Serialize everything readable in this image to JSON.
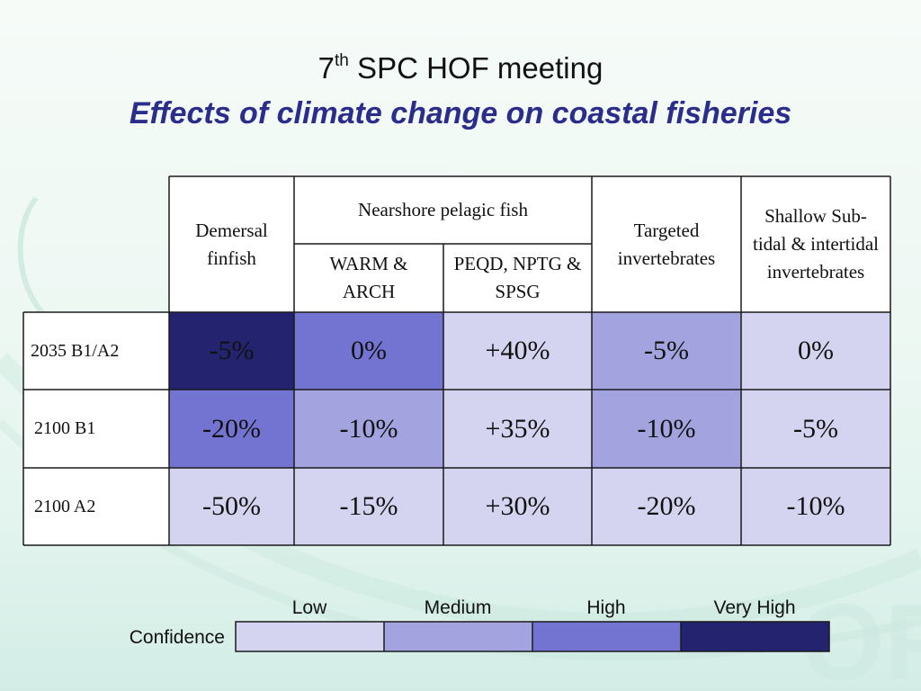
{
  "title": {
    "line1_prefix": "7",
    "line1_sup": "th",
    "line1_rest": " SPC HOF meeting",
    "line2": "Effects of climate change on coastal fisheries"
  },
  "table": {
    "headers": {
      "demersal": "Demersal finfish",
      "nearshore_group": "Nearshore pelagic fish",
      "warm": "WARM & ARCH",
      "peqd": "PEQD, NPTG & SPSG",
      "targeted": "Targeted invertebrates",
      "shallow": "Shallow Sub-tidal & intertidal invertebrates"
    },
    "rows": [
      {
        "label": "2035 B1/A2",
        "cells": [
          {
            "value": "-5%",
            "confidence": "Very High"
          },
          {
            "value": "0%",
            "confidence": "High"
          },
          {
            "value": "+40%",
            "confidence": "Low"
          },
          {
            "value": "-5%",
            "confidence": "Medium"
          },
          {
            "value": "0%",
            "confidence": "Low"
          }
        ]
      },
      {
        "label": "2100 B1",
        "cells": [
          {
            "value": "-20%",
            "confidence": "High"
          },
          {
            "value": "-10%",
            "confidence": "Medium"
          },
          {
            "value": "+35%",
            "confidence": "Low"
          },
          {
            "value": "-10%",
            "confidence": "Medium"
          },
          {
            "value": "-5%",
            "confidence": "Low"
          }
        ]
      },
      {
        "label": "2100 A2",
        "cells": [
          {
            "value": "-50%",
            "confidence": "Low"
          },
          {
            "value": "-15%",
            "confidence": "Low"
          },
          {
            "value": "+30%",
            "confidence": "Low"
          },
          {
            "value": "-20%",
            "confidence": "Low"
          },
          {
            "value": "-10%",
            "confidence": "Low"
          }
        ]
      }
    ]
  },
  "legend": {
    "title": "Confidence",
    "levels": [
      {
        "label": "Low",
        "color": "#d4d4f0"
      },
      {
        "label": "Medium",
        "color": "#a3a3e0"
      },
      {
        "label": "High",
        "color": "#7373d2"
      },
      {
        "label": "Very High",
        "color": "#232370"
      }
    ]
  },
  "colors": {
    "title_accent": "#2b2d8c",
    "grid_line": "#1a1a1a"
  }
}
